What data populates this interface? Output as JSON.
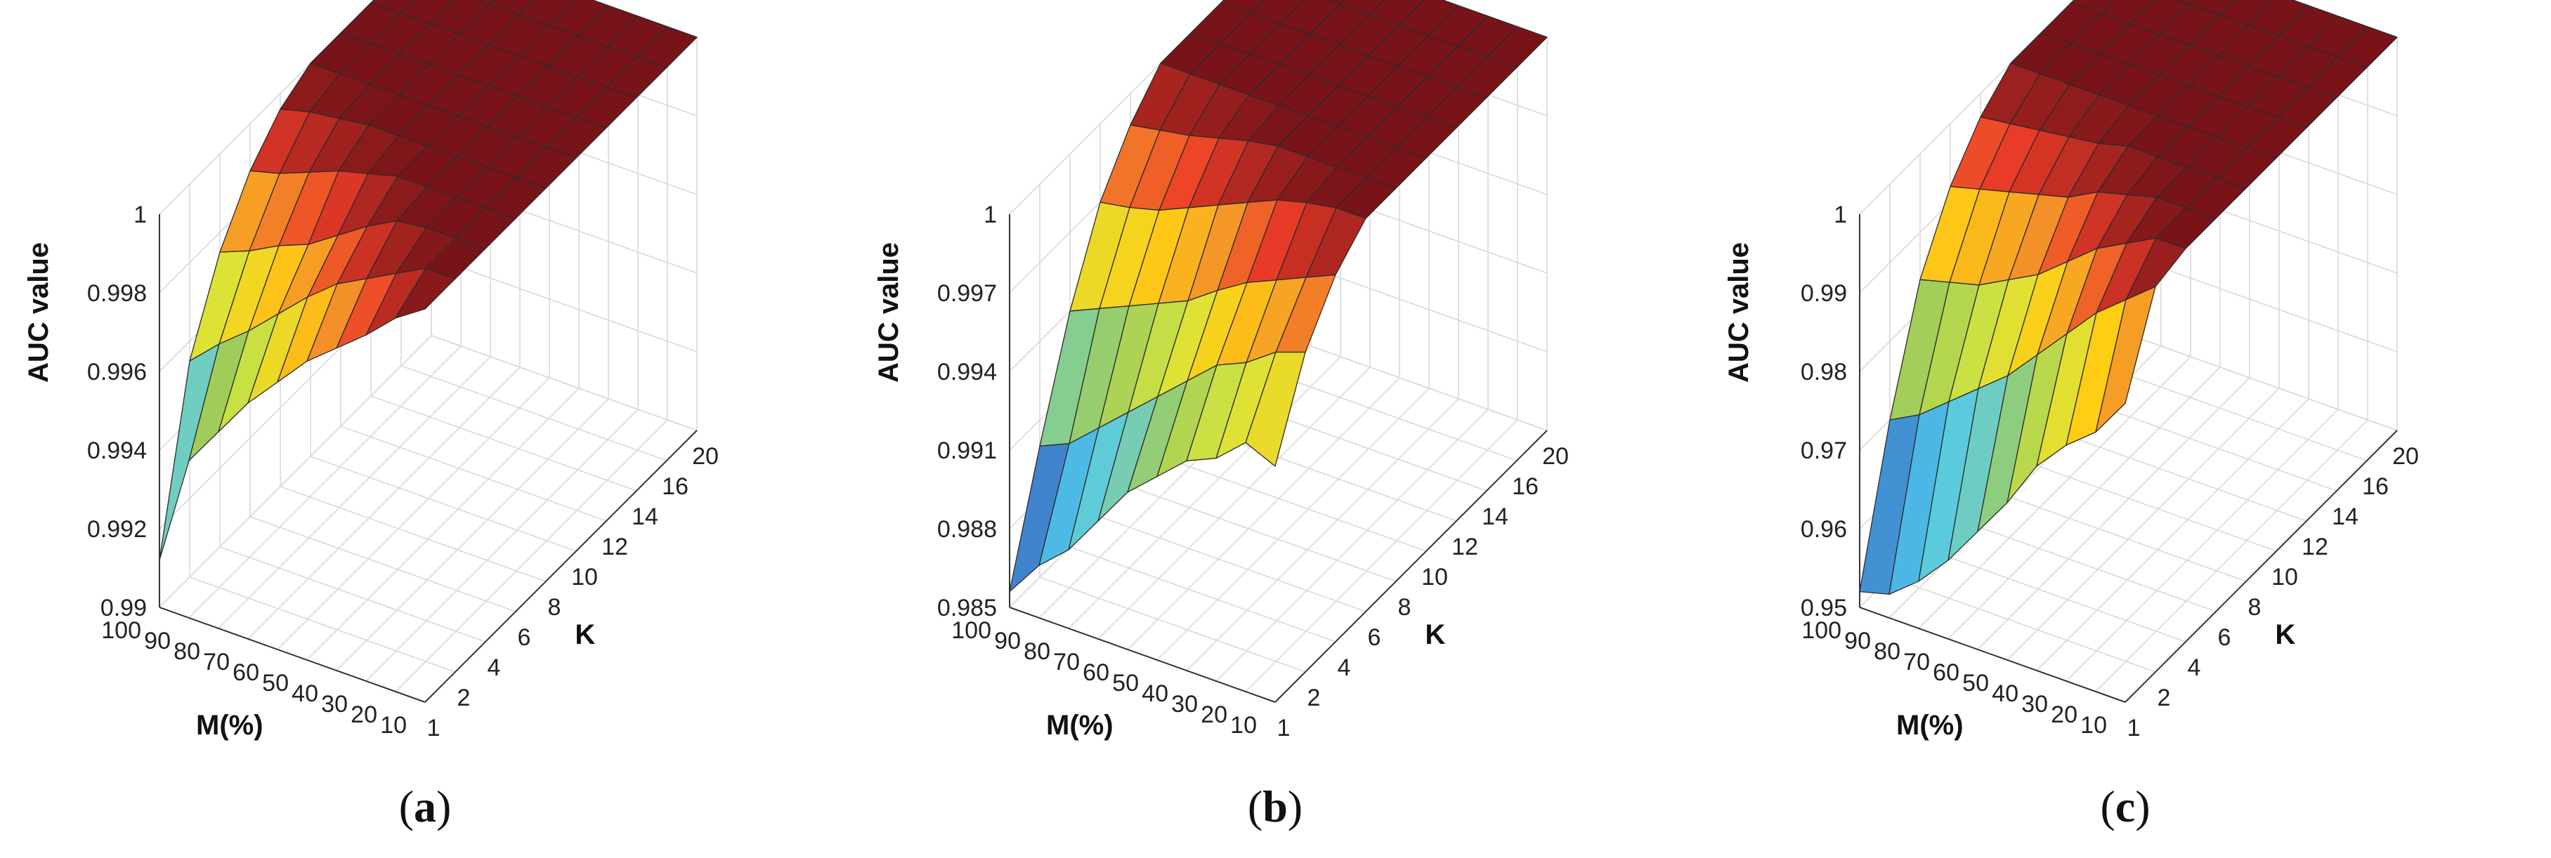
{
  "chart_data": [
    {
      "type": "surface3d",
      "caption_letter": "a",
      "zlabel": "AUC value",
      "xlabel": "K",
      "ylabel": "M(%)",
      "x_ticks": [
        "1",
        "2",
        "4",
        "6",
        "8",
        "10",
        "12",
        "14",
        "16",
        "20"
      ],
      "y_ticks": [
        "100",
        "90",
        "80",
        "70",
        "60",
        "50",
        "40",
        "30",
        "20",
        "10"
      ],
      "zlim": [
        0.99,
        1.0
      ],
      "z_ticks": [
        "0.99",
        "0.992",
        "0.994",
        "0.996",
        "0.998",
        "1"
      ],
      "z_tick_values": [
        0.99,
        0.992,
        0.994,
        0.996,
        0.998,
        1.0
      ],
      "grid": true,
      "colormap": "jet",
      "z": [
        [
          1.0,
          1.0,
          1.0,
          1.0,
          1.0,
          1.0,
          1.0,
          1.0,
          1.0,
          1.0
        ],
        [
          0.9995,
          1.0,
          1.0,
          1.0,
          1.0,
          1.0,
          1.0,
          1.0,
          1.0,
          1.0
        ],
        [
          0.9988,
          0.9996,
          1.0,
          1.0,
          1.0,
          1.0,
          1.0,
          1.0,
          1.0,
          1.0
        ],
        [
          0.9982,
          0.9992,
          0.9999,
          1.0,
          1.0,
          1.0,
          1.0,
          1.0,
          1.0,
          1.0
        ],
        [
          0.9976,
          0.9988,
          0.9995,
          1.0,
          1.0,
          1.0,
          1.0,
          1.0,
          1.0,
          1.0
        ],
        [
          0.9968,
          0.9982,
          0.999,
          0.9998,
          1.0,
          1.0,
          1.0,
          1.0,
          1.0,
          1.0
        ],
        [
          0.996,
          0.9975,
          0.9985,
          0.9996,
          1.0,
          1.0,
          1.0,
          1.0,
          1.0,
          1.0
        ],
        [
          0.995,
          0.9968,
          0.9982,
          0.9993,
          0.9999,
          1.0,
          1.0,
          1.0,
          1.0,
          1.0
        ],
        [
          0.994,
          0.9962,
          0.9978,
          0.999,
          0.9998,
          1.0,
          1.0,
          1.0,
          1.0,
          1.0
        ],
        [
          0.9912,
          0.9955,
          0.9975,
          0.9988,
          0.9996,
          1.0,
          1.0,
          1.0,
          1.0,
          1.0
        ]
      ]
    },
    {
      "type": "surface3d",
      "caption_letter": "b",
      "zlabel": "AUC value",
      "xlabel": "K",
      "ylabel": "M(%)",
      "x_ticks": [
        "1",
        "2",
        "4",
        "6",
        "8",
        "10",
        "12",
        "14",
        "16",
        "20"
      ],
      "y_ticks": [
        "100",
        "90",
        "80",
        "70",
        "60",
        "50",
        "40",
        "30",
        "20",
        "10"
      ],
      "zlim": [
        0.985,
        1.0
      ],
      "z_ticks": [
        "0.985",
        "0.988",
        "0.991",
        "0.994",
        "0.997",
        "1"
      ],
      "z_tick_values": [
        0.985,
        0.988,
        0.991,
        0.994,
        0.997,
        1.0
      ],
      "grid": true,
      "colormap": "jet",
      "z": [
        [
          0.994,
          0.9972,
          0.999,
          1.0,
          1.0,
          1.0,
          1.0,
          1.0,
          1.0,
          1.0
        ],
        [
          0.9945,
          0.9968,
          0.9985,
          1.0,
          1.0,
          1.0,
          1.0,
          1.0,
          1.0,
          1.0
        ],
        [
          0.9935,
          0.996,
          0.998,
          0.9998,
          1.0,
          1.0,
          1.0,
          1.0,
          1.0,
          1.0
        ],
        [
          0.993,
          0.9955,
          0.9975,
          0.9995,
          1.0,
          1.0,
          1.0,
          1.0,
          1.0,
          1.0
        ],
        [
          0.992,
          0.9945,
          0.9968,
          0.999,
          1.0,
          1.0,
          1.0,
          1.0,
          1.0,
          1.0
        ],
        [
          0.991,
          0.9935,
          0.996,
          0.9985,
          0.9998,
          1.0,
          1.0,
          1.0,
          1.0,
          1.0
        ],
        [
          0.9895,
          0.9925,
          0.9955,
          0.998,
          0.9995,
          1.0,
          1.0,
          1.0,
          1.0,
          1.0
        ],
        [
          0.988,
          0.9915,
          0.995,
          0.9975,
          0.9992,
          1.0,
          1.0,
          1.0,
          1.0,
          1.0
        ],
        [
          0.987,
          0.9905,
          0.9945,
          0.9972,
          0.999,
          1.0,
          1.0,
          1.0,
          1.0,
          1.0
        ],
        [
          0.9856,
          0.99,
          0.994,
          0.997,
          0.9988,
          1.0,
          1.0,
          1.0,
          1.0,
          1.0
        ]
      ]
    },
    {
      "type": "surface3d",
      "caption_letter": "c",
      "zlabel": "AUC value",
      "xlabel": "K",
      "ylabel": "M(%)",
      "x_ticks": [
        "1",
        "2",
        "4",
        "6",
        "8",
        "10",
        "12",
        "14",
        "16",
        "20"
      ],
      "y_ticks": [
        "100",
        "90",
        "80",
        "70",
        "60",
        "50",
        "40",
        "30",
        "20",
        "10"
      ],
      "zlim": [
        0.95,
        1.0
      ],
      "z_ticks": [
        "0.95",
        "0.96",
        "0.97",
        "0.98",
        "0.99",
        "1"
      ],
      "z_tick_values": [
        0.95,
        0.96,
        0.97,
        0.98,
        0.99,
        1.0
      ],
      "grid": true,
      "colormap": "jet",
      "z": [
        [
          0.988,
          0.999,
          1.0,
          1.0,
          1.0,
          1.0,
          1.0,
          1.0,
          1.0,
          1.0
        ],
        [
          0.983,
          0.996,
          1.0,
          1.0,
          1.0,
          1.0,
          1.0,
          1.0,
          1.0,
          1.0
        ],
        [
          0.98,
          0.993,
          0.998,
          1.0,
          1.0,
          1.0,
          1.0,
          1.0,
          1.0,
          1.0
        ],
        [
          0.976,
          0.989,
          0.996,
          0.999,
          1.0,
          1.0,
          1.0,
          1.0,
          1.0,
          1.0
        ],
        [
          0.97,
          0.985,
          0.993,
          0.998,
          1.0,
          1.0,
          1.0,
          1.0,
          1.0,
          1.0
        ],
        [
          0.965,
          0.981,
          0.99,
          0.996,
          0.999,
          1.0,
          1.0,
          1.0,
          1.0,
          1.0
        ],
        [
          0.96,
          0.978,
          0.988,
          0.995,
          0.9985,
          1.0,
          1.0,
          1.0,
          1.0,
          1.0
        ],
        [
          0.956,
          0.975,
          0.986,
          0.994,
          0.998,
          1.0,
          1.0,
          1.0,
          1.0,
          1.0
        ],
        [
          0.953,
          0.972,
          0.985,
          0.993,
          0.9975,
          1.0,
          1.0,
          1.0,
          1.0,
          1.0
        ],
        [
          0.952,
          0.97,
          0.984,
          0.992,
          0.997,
          1.0,
          1.0,
          1.0,
          1.0,
          1.0
        ]
      ]
    }
  ]
}
